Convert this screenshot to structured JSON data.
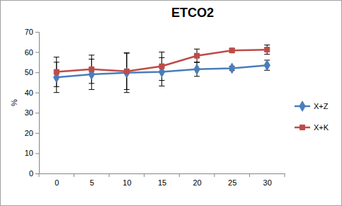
{
  "chart_data": {
    "type": "line",
    "title": "ETCO2",
    "y_label": "%",
    "categories": [
      "0",
      "5",
      "10",
      "15",
      "20",
      "25",
      "30"
    ],
    "series": [
      {
        "name": "X+Z",
        "color": "#4a7ebb",
        "marker": "diamond",
        "values": [
          47.5,
          49,
          49.8,
          50.2,
          51.5,
          52,
          53.5
        ],
        "errors": [
          7.5,
          7.5,
          9.8,
          7,
          3.5,
          1,
          2.5
        ]
      },
      {
        "name": "X+K",
        "color": "#be4b48",
        "marker": "square",
        "values": [
          50.2,
          51.5,
          50.5,
          53,
          58.2,
          60.8,
          61.2
        ],
        "errors": [
          7.3,
          7,
          9,
          7,
          3.3,
          1,
          2.3
        ]
      }
    ],
    "ylim": [
      0,
      70
    ],
    "yticks": [
      0,
      10,
      20,
      30,
      40,
      50,
      60,
      70
    ],
    "grid": false,
    "legend": "right"
  }
}
